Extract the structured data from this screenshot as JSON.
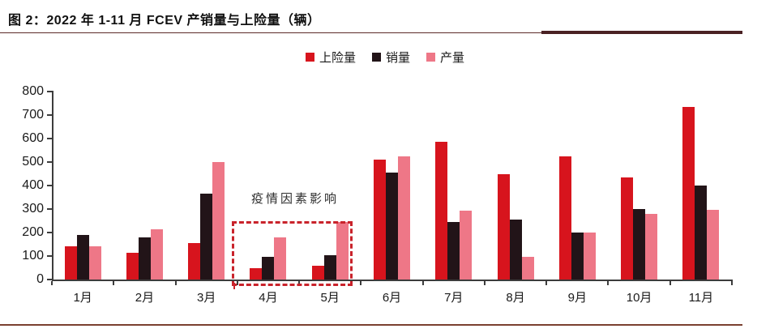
{
  "figure": {
    "title": "图 2：2022 年 1-11 月 FCEV 产销量与上险量（辆）",
    "annotation_text": "疫情因素影响"
  },
  "legend": {
    "items": [
      {
        "label": "上险量",
        "color": "#d7141d"
      },
      {
        "label": "销量",
        "color": "#221418"
      },
      {
        "label": "产量",
        "color": "#ee7787"
      }
    ]
  },
  "chart_data": {
    "type": "bar",
    "title": "2022 年 1-11 月 FCEV 产销量与上险量（辆）",
    "categories": [
      "1月",
      "2月",
      "3月",
      "4月",
      "5月",
      "6月",
      "7月",
      "8月",
      "9月",
      "10月",
      "11月"
    ],
    "series": [
      {
        "name": "上险量",
        "color": "#d7141d",
        "values": [
          140,
          115,
          155,
          50,
          57,
          510,
          585,
          447,
          525,
          435,
          733
        ]
      },
      {
        "name": "销量",
        "color": "#221418",
        "values": [
          190,
          180,
          365,
          95,
          105,
          455,
          245,
          255,
          200,
          300,
          400
        ]
      },
      {
        "name": "产量",
        "color": "#ee7787",
        "values": [
          140,
          215,
          500,
          178,
          245,
          525,
          292,
          97,
          200,
          278,
          298
        ]
      }
    ],
    "xlabel": "",
    "ylabel": "",
    "ylim": [
      0,
      800
    ],
    "yticks": [
      0,
      100,
      200,
      300,
      400,
      500,
      600,
      700,
      800
    ],
    "grid": false,
    "legend_position": "top",
    "annotation": {
      "text": "疫情因素影响",
      "highlight_months": [
        "4月",
        "5月"
      ],
      "box_style": "red-dashed"
    }
  },
  "colors": {
    "accent_red": "#d7141d",
    "series_dark": "#221418",
    "series_pink": "#ee7787",
    "dashed_box": "#c9232b",
    "title_rule": "#4a2123",
    "bottom_rule": "#7b4030",
    "axis": "#3c3c3c"
  }
}
